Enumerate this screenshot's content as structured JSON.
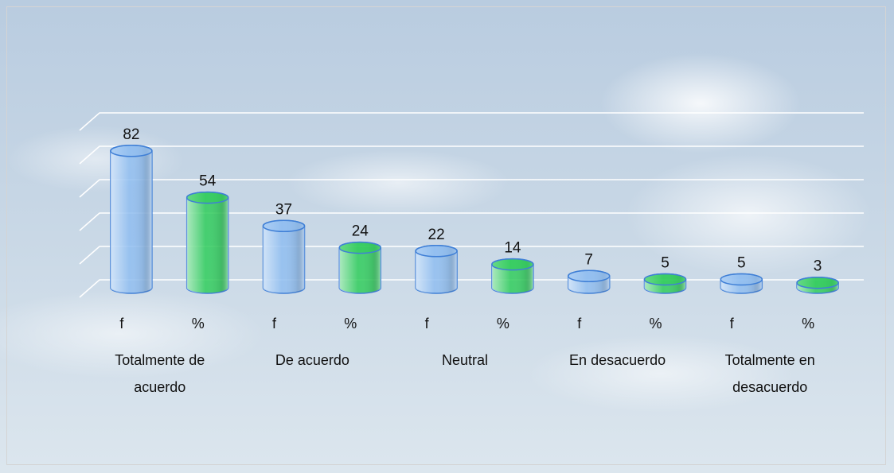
{
  "chart_data": {
    "type": "cylinder",
    "categories": [
      "Totalmente de acuerdo",
      "De acuerdo",
      "Neutral",
      "En desacuerdo",
      "Totalmente en desacuerdo"
    ],
    "series": [
      {
        "name": "f",
        "color": "#8fbdf0",
        "values": [
          82,
          37,
          22,
          7,
          5
        ]
      },
      {
        "name": "%",
        "color": "#2fcc5a",
        "values": [
          54,
          24,
          14,
          5,
          3
        ]
      }
    ],
    "ylim": [
      0,
      100
    ],
    "yticks": [
      0,
      20,
      40,
      60,
      80,
      100
    ],
    "grid": true
  }
}
